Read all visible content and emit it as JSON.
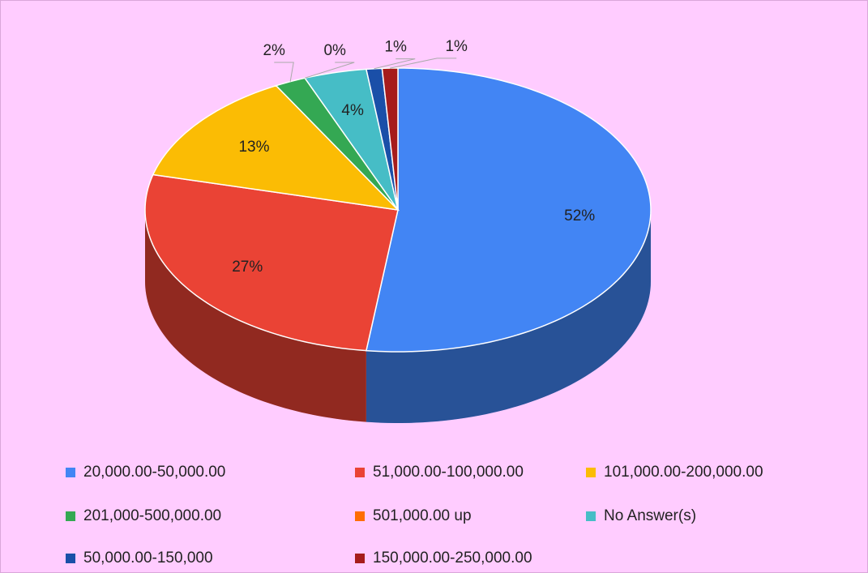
{
  "chart_data": {
    "type": "pie3d",
    "categories": [
      "20,000.00-50,000.00",
      "51,000.00-100,000.00",
      "101,000.00-200,000.00",
      "201,000-500,000.00",
      "501,000.00 up",
      "No Answer(s)",
      "50,000.00-150,000",
      "150,000.00-250,000.00"
    ],
    "values": [
      52,
      27,
      13,
      2,
      0,
      4,
      1,
      1
    ],
    "value_labels": [
      "52%",
      "27%",
      "13%",
      "2%",
      "0%",
      "4%",
      "1%",
      "1%"
    ],
    "colors": [
      "#4285f4",
      "#ea4335",
      "#fbbc04",
      "#34a853",
      "#ff6d01",
      "#46bdc6",
      "#1a4fa8",
      "#a61c1c"
    ],
    "legend": "bottom"
  }
}
